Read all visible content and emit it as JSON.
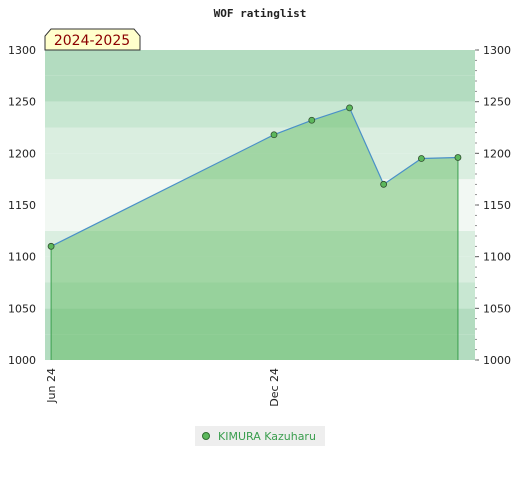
{
  "chart_data": {
    "type": "area",
    "title": "WOF ratinglist",
    "season_label": "2024-2025",
    "x": [
      "2024-06-01",
      "2024-12-01",
      "2025-01-01",
      "2025-02-01",
      "2025-03-01",
      "2025-04-01",
      "2025-05-01"
    ],
    "x_ticks": [
      {
        "date": "2024-06-01",
        "label": "Jun 24"
      },
      {
        "date": "2024-12-01",
        "label": "Dec 24"
      }
    ],
    "xlim": [
      "2024-05-27",
      "2025-05-15"
    ],
    "ylim": [
      1000,
      1300
    ],
    "y_ticks": [
      1000,
      1050,
      1100,
      1150,
      1200,
      1250,
      1300
    ],
    "series": [
      {
        "name": "KIMURA Kazuharu",
        "values": [
          1110,
          1218,
          1232,
          1244,
          1170,
          1195,
          1196
        ]
      }
    ],
    "legend_position": "bottom",
    "grid": true,
    "colors": {
      "line": "#4a90c8",
      "fill": "#5cb85c",
      "marker": "#5cb85c",
      "band_green": "#b3dcc0",
      "band_light": "#f2f8f3",
      "season_bg": "#ffffcc"
    }
  }
}
